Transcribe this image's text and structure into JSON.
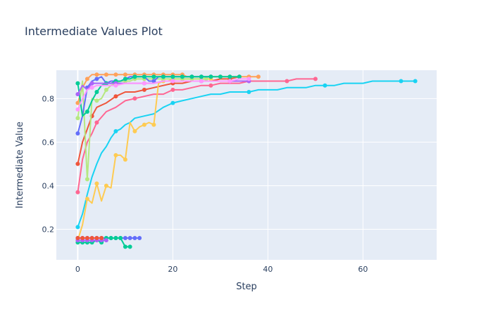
{
  "chart_data": {
    "type": "line",
    "title": "Intermediate Values Plot",
    "xlabel": "Step",
    "ylabel": "Intermediate Value",
    "xlim": [
      -4.5,
      75.5
    ],
    "ylim": [
      0.06,
      0.93
    ],
    "xticks": [
      0,
      20,
      40,
      60
    ],
    "yticks": [
      0.2,
      0.4,
      0.6,
      0.8
    ],
    "ytick_labels": [
      "0.2",
      "0.4",
      "0.6",
      "0.8"
    ],
    "grid": true,
    "legend": "none",
    "colors": {
      "plot_bg": "#e5ecf6",
      "text": "#2a3f5f"
    },
    "series": [
      {
        "color": "#19d3f3",
        "marker_every": 8,
        "x": [
          0,
          1,
          2,
          3,
          4,
          5,
          6,
          7,
          8,
          9,
          10,
          11,
          12,
          14,
          16,
          18,
          20,
          22,
          24,
          26,
          28,
          30,
          32,
          34,
          36,
          38,
          40,
          42,
          44,
          46,
          48,
          50,
          52,
          54,
          56,
          58,
          60,
          62,
          64,
          66,
          68,
          70,
          71
        ],
        "y": [
          0.21,
          0.27,
          0.36,
          0.44,
          0.5,
          0.55,
          0.58,
          0.62,
          0.65,
          0.66,
          0.68,
          0.69,
          0.71,
          0.72,
          0.73,
          0.76,
          0.78,
          0.79,
          0.8,
          0.81,
          0.82,
          0.82,
          0.83,
          0.83,
          0.83,
          0.84,
          0.84,
          0.84,
          0.85,
          0.85,
          0.85,
          0.86,
          0.86,
          0.86,
          0.87,
          0.87,
          0.87,
          0.88,
          0.88,
          0.88,
          0.88,
          0.88,
          0.88
        ]
      },
      {
        "color": "#ff6692",
        "marker_every": 4,
        "x": [
          0,
          1,
          2,
          3,
          4,
          6,
          8,
          10,
          12,
          14,
          16,
          18,
          20,
          22,
          24,
          26,
          28,
          30,
          32,
          34,
          36,
          38,
          40,
          42,
          44,
          46,
          48,
          50
        ],
        "y": [
          0.37,
          0.52,
          0.6,
          0.64,
          0.69,
          0.74,
          0.76,
          0.79,
          0.8,
          0.81,
          0.82,
          0.82,
          0.84,
          0.84,
          0.85,
          0.86,
          0.86,
          0.87,
          0.87,
          0.87,
          0.88,
          0.88,
          0.88,
          0.88,
          0.88,
          0.89,
          0.89,
          0.89
        ]
      },
      {
        "color": "#ef553b",
        "marker_every": 3,
        "x": [
          0,
          1,
          2,
          3,
          4,
          6,
          8,
          10,
          12,
          14,
          16,
          18,
          20,
          22,
          24,
          26,
          28,
          30,
          32,
          34
        ],
        "y": [
          0.5,
          0.6,
          0.66,
          0.72,
          0.76,
          0.78,
          0.81,
          0.83,
          0.83,
          0.84,
          0.85,
          0.86,
          0.87,
          0.87,
          0.88,
          0.88,
          0.88,
          0.89,
          0.89,
          0.9
        ]
      },
      {
        "color": "#fecb52",
        "marker_every": 2,
        "x": [
          0,
          1,
          2,
          3,
          4,
          5,
          6,
          7,
          8,
          9,
          10,
          11,
          12,
          13,
          14,
          15,
          16,
          17,
          18,
          19,
          20,
          21,
          22,
          23,
          24,
          25,
          26,
          27,
          28
        ],
        "y": [
          0.15,
          0.22,
          0.34,
          0.32,
          0.41,
          0.33,
          0.4,
          0.39,
          0.54,
          0.54,
          0.52,
          0.69,
          0.65,
          0.67,
          0.68,
          0.69,
          0.68,
          0.87,
          0.88,
          0.88,
          0.89,
          0.89,
          0.89,
          0.89,
          0.89,
          0.89,
          0.89,
          0.89,
          0.89
        ]
      },
      {
        "color": "#ffa15a",
        "marker_every": 2,
        "x": [
          0,
          1,
          2,
          3,
          4,
          5,
          6,
          7,
          8,
          9,
          10,
          11,
          12,
          13,
          14,
          15,
          16,
          17,
          18,
          19,
          20,
          21,
          22,
          23,
          24,
          25,
          26,
          27,
          28,
          29,
          30,
          31,
          32,
          33,
          34,
          35,
          36,
          37,
          38
        ],
        "y": [
          0.78,
          0.85,
          0.89,
          0.91,
          0.91,
          0.91,
          0.91,
          0.91,
          0.91,
          0.91,
          0.91,
          0.91,
          0.91,
          0.91,
          0.91,
          0.91,
          0.91,
          0.91,
          0.91,
          0.91,
          0.91,
          0.91,
          0.91,
          0.9,
          0.9,
          0.9,
          0.9,
          0.9,
          0.9,
          0.9,
          0.9,
          0.9,
          0.9,
          0.9,
          0.9,
          0.9,
          0.9,
          0.9,
          0.9
        ]
      },
      {
        "color": "#b6e880",
        "marker_every": 2,
        "x": [
          0,
          1,
          2,
          3,
          4,
          5,
          6,
          7,
          8,
          9,
          10,
          11,
          12,
          13,
          14,
          15,
          16,
          17,
          18,
          19,
          20,
          21,
          22,
          23,
          24,
          25,
          26,
          27
        ],
        "y": [
          0.71,
          0.88,
          0.43,
          0.8,
          0.79,
          0.8,
          0.84,
          0.86,
          0.87,
          0.88,
          0.88,
          0.88,
          0.89,
          0.89,
          0.89,
          0.89,
          0.89,
          0.89,
          0.89,
          0.89,
          0.89,
          0.89,
          0.89,
          0.89,
          0.89,
          0.89,
          0.89,
          0.89
        ]
      },
      {
        "color": "#636efa",
        "marker_every": 2,
        "x": [
          0,
          1,
          2,
          3,
          4,
          5,
          6,
          7,
          8,
          9,
          10,
          11,
          12,
          13,
          14,
          15,
          16,
          17,
          18,
          19,
          20,
          21,
          22,
          23,
          24,
          25,
          26,
          27,
          28
        ],
        "y": [
          0.64,
          0.72,
          0.85,
          0.88,
          0.89,
          0.9,
          0.87,
          0.88,
          0.88,
          0.88,
          0.89,
          0.9,
          0.9,
          0.9,
          0.9,
          0.88,
          0.88,
          0.9,
          0.9,
          0.9,
          0.9,
          0.9,
          0.9,
          0.9,
          0.9,
          0.9,
          0.9,
          0.9,
          0.9
        ]
      },
      {
        "color": "#00cc96",
        "marker_every": 2,
        "x": [
          0,
          1,
          2,
          3,
          4,
          5,
          6,
          7,
          8,
          9,
          10,
          11,
          12,
          13,
          14,
          15,
          16,
          17,
          18,
          19,
          20,
          21,
          22,
          23,
          24,
          25,
          26,
          27,
          28,
          29,
          30,
          31,
          32,
          33,
          34
        ],
        "y": [
          0.87,
          0.72,
          0.74,
          0.79,
          0.83,
          0.86,
          0.87,
          0.87,
          0.88,
          0.88,
          0.89,
          0.89,
          0.9,
          0.9,
          0.9,
          0.9,
          0.9,
          0.9,
          0.9,
          0.9,
          0.9,
          0.9,
          0.9,
          0.9,
          0.9,
          0.9,
          0.9,
          0.9,
          0.9,
          0.9,
          0.9,
          0.9,
          0.9,
          0.9,
          0.9
        ]
      },
      {
        "color": "#ab63fa",
        "marker_every": 3,
        "x": [
          0,
          1,
          2,
          3,
          4,
          6,
          8,
          10,
          12,
          14,
          16,
          18,
          20,
          22,
          24,
          26,
          28,
          30,
          32,
          34,
          36
        ],
        "y": [
          0.82,
          0.86,
          0.84,
          0.87,
          0.87,
          0.87,
          0.87,
          0.87,
          0.87,
          0.87,
          0.87,
          0.88,
          0.88,
          0.88,
          0.88,
          0.88,
          0.88,
          0.88,
          0.88,
          0.88,
          0.88
        ]
      },
      {
        "color": "#ff97ff",
        "marker_every": 3,
        "x": [
          0,
          1,
          2,
          3,
          4,
          6,
          8,
          10,
          12,
          14,
          16,
          18,
          20,
          22,
          24,
          26,
          28,
          30,
          32,
          34,
          36
        ],
        "y": [
          0.75,
          0.8,
          0.84,
          0.85,
          0.86,
          0.86,
          0.86,
          0.87,
          0.87,
          0.87,
          0.87,
          0.88,
          0.88,
          0.88,
          0.88,
          0.88,
          0.88,
          0.88,
          0.88,
          0.89,
          0.89
        ]
      },
      {
        "color": "#636efa",
        "marker_every": 1,
        "x": [
          0,
          1,
          2,
          3,
          4,
          5,
          6,
          7,
          8,
          9,
          10,
          11,
          12,
          13
        ],
        "y": [
          0.16,
          0.16,
          0.16,
          0.16,
          0.16,
          0.16,
          0.16,
          0.16,
          0.16,
          0.16,
          0.16,
          0.16,
          0.16,
          0.16
        ]
      },
      {
        "color": "#00cc96",
        "marker_every": 1,
        "x": [
          0,
          1,
          2,
          3,
          4,
          5,
          6,
          7,
          8,
          9,
          10,
          11
        ],
        "y": [
          0.14,
          0.14,
          0.14,
          0.14,
          0.15,
          0.14,
          0.16,
          0.16,
          0.16,
          0.16,
          0.12,
          0.12
        ]
      },
      {
        "color": "#ab63fa",
        "marker_every": 1,
        "x": [
          0,
          1,
          2,
          3,
          4,
          5,
          6
        ],
        "y": [
          0.15,
          0.15,
          0.15,
          0.15,
          0.15,
          0.15,
          0.15
        ]
      },
      {
        "color": "#ef553b",
        "marker_every": 1,
        "x": [
          0,
          1,
          2,
          3,
          4,
          5
        ],
        "y": [
          0.16,
          0.16,
          0.16,
          0.16,
          0.16,
          0.16
        ]
      }
    ]
  }
}
